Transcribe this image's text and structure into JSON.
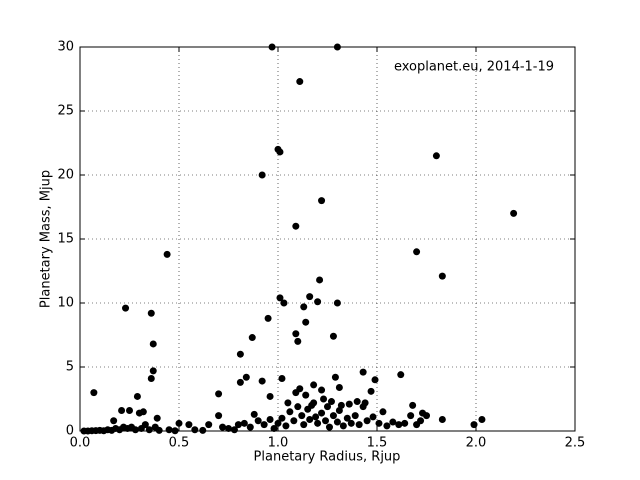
{
  "chart_data": {
    "type": "scatter",
    "annotation": "exoplanet.eu, 2014-1-19",
    "x_label": "Planetary Radius, Rjup",
    "y_label": "Planetary Mass, Mjup",
    "xlim": [
      0,
      2.5
    ],
    "ylim": [
      0,
      30
    ],
    "xticks": [
      {
        "value": 0,
        "label": "0.0"
      },
      0.5,
      {
        "value": 1,
        "label": "1.0"
      },
      1.5,
      {
        "value": 2,
        "label": "2.0"
      },
      2.5
    ],
    "yticks": [
      0,
      5,
      10,
      15,
      20,
      25,
      30
    ],
    "grid": true,
    "color": "#000000",
    "x": [
      0.97,
      1.3,
      1.11,
      1.8,
      1.0,
      1.01,
      0.92,
      1.22,
      2.19,
      1.09,
      1.7,
      0.44,
      1.83,
      1.21,
      1.01,
      1.16,
      1.03,
      1.2,
      1.3,
      0.23,
      1.13,
      0.36,
      0.95,
      1.14,
      1.09,
      1.28,
      0.87,
      1.1,
      0.37,
      0.81,
      0.37,
      1.43,
      1.62,
      0.84,
      1.29,
      0.36,
      1.02,
      0.92,
      0.81,
      1.49,
      1.18,
      1.31,
      1.11,
      0.07,
      0.7,
      1.22,
      0.29,
      0.96,
      1.47,
      1.09,
      1.4,
      1.05,
      1.23,
      1.36,
      1.68,
      0.21,
      0.25,
      0.3,
      0.32,
      0.39,
      0.7,
      0.88,
      1.53,
      1.73,
      1.75,
      1.67,
      2.03,
      1.83,
      1.99,
      0.17,
      0.5,
      0.55,
      0.65,
      0.02,
      0.04,
      0.06,
      0.08,
      0.1,
      0.12,
      0.14,
      0.16,
      0.18,
      0.2,
      0.22,
      0.24,
      0.26,
      0.28,
      0.31,
      0.33,
      0.35,
      0.38,
      0.4,
      0.45,
      0.48,
      0.58,
      0.62,
      0.72,
      0.75,
      0.78,
      0.8,
      0.83,
      0.86,
      0.9,
      0.93,
      0.96,
      0.98,
      1.0,
      1.02,
      1.04,
      1.06,
      1.08,
      1.1,
      1.12,
      1.13,
      1.15,
      1.16,
      1.18,
      1.19,
      1.2,
      1.22,
      1.24,
      1.25,
      1.26,
      1.28,
      1.3,
      1.31,
      1.33,
      1.35,
      1.37,
      1.39,
      1.41,
      1.43,
      1.45,
      1.48,
      1.51,
      1.55,
      1.58,
      1.61,
      1.64,
      1.7,
      1.72,
      1.14,
      1.17,
      1.27,
      1.32,
      1.44
    ],
    "values": [
      30,
      30,
      27.3,
      21.5,
      22,
      21.8,
      20,
      18,
      17,
      16,
      14,
      13.8,
      12.1,
      11.8,
      10.4,
      10.5,
      10,
      10.1,
      10,
      9.6,
      9.7,
      9.2,
      8.8,
      8.5,
      7.6,
      7.4,
      7.3,
      7,
      6.8,
      6,
      4.7,
      4.6,
      4.4,
      4.2,
      4.2,
      4.1,
      4.1,
      3.9,
      3.8,
      4,
      3.6,
      3.4,
      3.3,
      3,
      2.9,
      3.2,
      2.7,
      2.7,
      3.1,
      3,
      2.3,
      2.2,
      2.5,
      2.1,
      2,
      1.6,
      1.6,
      1.4,
      1.5,
      1,
      1.2,
      1.3,
      1.5,
      1.4,
      1.2,
      1.2,
      0.9,
      0.9,
      0.5,
      0.8,
      0.6,
      0.5,
      0.5,
      0,
      0,
      0.02,
      0.03,
      0.05,
      0.02,
      0.1,
      0.05,
      0.2,
      0.1,
      0.3,
      0.2,
      0.3,
      0.1,
      0.2,
      0.5,
      0.1,
      0.3,
      0.05,
      0.1,
      0.02,
      0.1,
      0.05,
      0.3,
      0.2,
      0.1,
      0.5,
      0.6,
      0.3,
      0.8,
      0.5,
      0.9,
      0.2,
      0.6,
      1,
      0.4,
      1.5,
      0.8,
      1.9,
      1.2,
      0.5,
      1.7,
      0.9,
      2.2,
      1.1,
      0.6,
      1.4,
      0.8,
      1.9,
      0.3,
      1.2,
      0.7,
      1.6,
      0.4,
      1,
      0.6,
      1.2,
      0.5,
      1.9,
      0.8,
      1.1,
      0.6,
      0.4,
      0.7,
      0.5,
      0.6,
      0.5,
      0.8,
      2.8,
      2,
      2.3,
      2,
      2.2
    ]
  }
}
